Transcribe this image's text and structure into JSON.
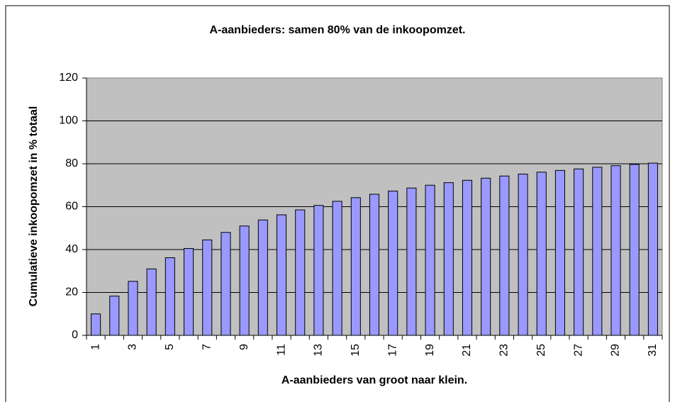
{
  "chart_data": {
    "type": "bar",
    "title": "A-aanbieders: samen 80% van de inkoopomzet.",
    "x_label": "A-aanbieders van groot naar klein.",
    "y_label": "Cumulatieve inkoopomzet in % totaal",
    "categories": [
      "1",
      null,
      "3",
      null,
      "5",
      null,
      "7",
      null,
      "9",
      null,
      "11",
      null,
      "13",
      null,
      "15",
      null,
      "17",
      null,
      "19",
      null,
      "21",
      null,
      "23",
      null,
      "25",
      null,
      "27",
      null,
      "29",
      null,
      "31"
    ],
    "values": [
      10,
      18.3,
      25.2,
      31,
      36.2,
      40.5,
      44.5,
      48,
      51,
      53.8,
      56.2,
      58.5,
      60.6,
      62.5,
      64.2,
      65.8,
      67.3,
      68.7,
      70,
      71.2,
      72.3,
      73.3,
      74.3,
      75.2,
      76.1,
      76.9,
      77.6,
      78.4,
      79.1,
      79.7,
      80.3
    ],
    "color": "#9999ff",
    "ylim": [
      0,
      120
    ],
    "yticks": [
      0,
      20,
      40,
      60,
      80,
      100,
      120
    ],
    "grid": true
  }
}
